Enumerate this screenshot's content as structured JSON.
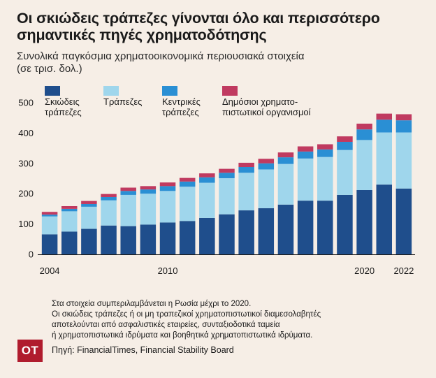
{
  "header": {
    "title": "Οι σκιώδεις τράπεζες γίνονται όλο και περισσότερο σημαντικές πηγές χρηματοδότησης",
    "subtitle_line1": "Συνολικά παγκόσμια χρηματοοικονομικά περιουσιακά στοιχεία",
    "subtitle_line2": "(σε τρισ. δολ.)"
  },
  "notes": {
    "line1": "Στα στοιχεία συμπεριλαμβάνεται η Ρωσία μέχρι το 2020.",
    "line2": "Οι σκιώδεις τράπεζες ή οι μη τραπεζικοί χρηματοπιστωτικοί διαμεσολαβητές",
    "line3": "αποτελούνται από ασφαλιστικές εταιρείες, συνταξιοδοτικά ταμεία",
    "line4": "ή χρηματοπιστωτικά ιδρύματα και βοηθητικά χρηματοπιστωτικά ιδρύματα."
  },
  "footer": {
    "logo_text": "OT",
    "source": "Πηγή: FinancialTimes, Financial Stability Board"
  },
  "colors": {
    "shadow_banks": "#1f4e8c",
    "banks": "#9fd6ec",
    "central_banks": "#2a8fd4",
    "public_institutions": "#c03a60",
    "background": "#f6eee6"
  },
  "chart_data": {
    "type": "bar",
    "stacked": true,
    "x": [
      2004,
      2005,
      2006,
      2007,
      2008,
      2009,
      2010,
      2011,
      2012,
      2013,
      2014,
      2015,
      2016,
      2017,
      2018,
      2019,
      2020,
      2021,
      2022
    ],
    "x_tick_labels": [
      {
        "value": 2004,
        "label": "2004"
      },
      {
        "value": 2010,
        "label": "2010"
      },
      {
        "value": 2020,
        "label": "2020"
      },
      {
        "value": 2022,
        "label": "2022"
      }
    ],
    "series": [
      {
        "name": "Σκιώδεις τράπεζες",
        "legend_lines": [
          "Σκιώδεις",
          "τράπεζες"
        ],
        "color": "#1f4e8c",
        "values": [
          66,
          75,
          84,
          95,
          93,
          98,
          105,
          110,
          120,
          132,
          145,
          152,
          164,
          177,
          177,
          196,
          212,
          230,
          217
        ]
      },
      {
        "name": "Τράπεζες",
        "legend_lines": [
          "Τράπεζες"
        ],
        "color": "#9fd6ec",
        "values": [
          59,
          67,
          73,
          83,
          103,
          102,
          104,
          113,
          116,
          119,
          124,
          128,
          134,
          139,
          144,
          148,
          165,
          172,
          185
        ]
      },
      {
        "name": "Κεντρικές τράπεζες",
        "legend_lines": [
          "Κεντρικές",
          "τράπεζες"
        ],
        "color": "#2a8fd4",
        "values": [
          6,
          8,
          9,
          11,
          13,
          14,
          16,
          17,
          18,
          18,
          19,
          20,
          22,
          23,
          25,
          27,
          35,
          42,
          40
        ]
      },
      {
        "name": "Δημόσιοι χρηματοπιστωτικοί οργανισμοί",
        "legend_lines": [
          "Δημόσιοι χρηματο-",
          "πιστωτικοί οργανισμοί"
        ],
        "color": "#c03a60",
        "values": [
          9,
          9,
          10,
          10,
          11,
          11,
          12,
          12,
          13,
          13,
          14,
          15,
          16,
          17,
          17,
          18,
          19,
          20,
          20
        ]
      }
    ],
    "y_ticks": [
      0,
      100,
      200,
      300,
      400,
      500
    ],
    "ylim": [
      0,
      500
    ],
    "grid": false,
    "legend_position": "top"
  }
}
